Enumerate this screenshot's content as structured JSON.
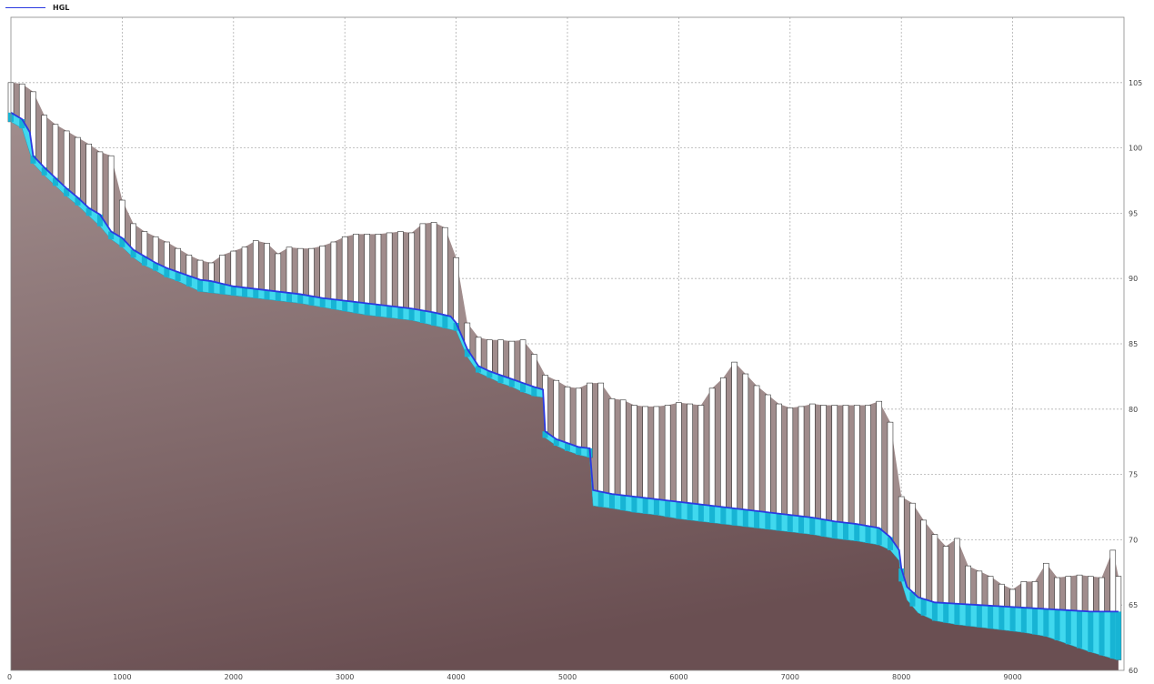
{
  "legend": {
    "hgl_label": "HGL"
  },
  "colors": {
    "hgl": "#2b3ae0",
    "water": "#40d8ee",
    "ground_top": "#a08c8c",
    "ground_bottom": "#6a4f52",
    "pipe_fill": "#ffffff",
    "grid": "#b0b0b0"
  },
  "chart_data": {
    "type": "area",
    "title": "",
    "xlabel": "",
    "ylabel": "",
    "xlim": [
      0,
      10000
    ],
    "ylim": [
      60,
      110
    ],
    "x_ticks": [
      0,
      1000,
      2000,
      3000,
      4000,
      5000,
      6000,
      7000,
      8000,
      9000
    ],
    "y_ticks": [
      60,
      65,
      70,
      75,
      80,
      85,
      90,
      95,
      100,
      105
    ],
    "grid": true,
    "legend_position": "top-left",
    "series": [
      {
        "name": "HGL",
        "points": [
          [
            0,
            102.7
          ],
          [
            100,
            102.2
          ],
          [
            170,
            101.2
          ],
          [
            200,
            99.4
          ],
          [
            300,
            98.5
          ],
          [
            400,
            97.7
          ],
          [
            500,
            96.9
          ],
          [
            600,
            96.2
          ],
          [
            700,
            95.4
          ],
          [
            800,
            94.9
          ],
          [
            900,
            93.6
          ],
          [
            1000,
            93.1
          ],
          [
            1100,
            92.2
          ],
          [
            1200,
            91.7
          ],
          [
            1300,
            91.2
          ],
          [
            1400,
            90.8
          ],
          [
            1500,
            90.5
          ],
          [
            1600,
            90.2
          ],
          [
            1700,
            89.9
          ],
          [
            1800,
            89.8
          ],
          [
            1900,
            89.6
          ],
          [
            2000,
            89.4
          ],
          [
            2200,
            89.2
          ],
          [
            2400,
            89.0
          ],
          [
            2600,
            88.8
          ],
          [
            2800,
            88.5
          ],
          [
            3000,
            88.3
          ],
          [
            3200,
            88.1
          ],
          [
            3400,
            87.9
          ],
          [
            3600,
            87.7
          ],
          [
            3800,
            87.4
          ],
          [
            3950,
            87.1
          ],
          [
            4000,
            86.6
          ],
          [
            4100,
            84.6
          ],
          [
            4200,
            83.3
          ],
          [
            4300,
            82.9
          ],
          [
            4400,
            82.6
          ],
          [
            4500,
            82.3
          ],
          [
            4600,
            82.0
          ],
          [
            4700,
            81.7
          ],
          [
            4780,
            81.5
          ],
          [
            4800,
            78.3
          ],
          [
            4900,
            77.7
          ],
          [
            5000,
            77.4
          ],
          [
            5100,
            77.1
          ],
          [
            5200,
            77.0
          ],
          [
            5230,
            73.8
          ],
          [
            5400,
            73.5
          ],
          [
            5600,
            73.3
          ],
          [
            5800,
            73.1
          ],
          [
            6000,
            72.9
          ],
          [
            6200,
            72.7
          ],
          [
            6400,
            72.5
          ],
          [
            6600,
            72.3
          ],
          [
            6800,
            72.1
          ],
          [
            7000,
            71.9
          ],
          [
            7200,
            71.7
          ],
          [
            7400,
            71.4
          ],
          [
            7600,
            71.2
          ],
          [
            7800,
            70.9
          ],
          [
            7900,
            70.2
          ],
          [
            7980,
            69.2
          ],
          [
            8000,
            67.8
          ],
          [
            8050,
            66.4
          ],
          [
            8150,
            65.6
          ],
          [
            8300,
            65.2
          ],
          [
            8500,
            65.1
          ],
          [
            8700,
            65.0
          ],
          [
            8900,
            64.9
          ],
          [
            9100,
            64.8
          ],
          [
            9300,
            64.7
          ],
          [
            9500,
            64.6
          ],
          [
            9700,
            64.5
          ],
          [
            9950,
            64.5
          ]
        ]
      }
    ],
    "ground_profile": [
      [
        0,
        102.0
      ],
      [
        100,
        101.5
      ],
      [
        200,
        98.8
      ],
      [
        300,
        97.9
      ],
      [
        400,
        97.1
      ],
      [
        500,
        96.3
      ],
      [
        600,
        95.6
      ],
      [
        700,
        94.8
      ],
      [
        800,
        94.0
      ],
      [
        900,
        93.0
      ],
      [
        1000,
        92.4
      ],
      [
        1100,
        91.6
      ],
      [
        1200,
        91.0
      ],
      [
        1300,
        90.6
      ],
      [
        1400,
        90.1
      ],
      [
        1500,
        89.8
      ],
      [
        1600,
        89.4
      ],
      [
        1700,
        89.0
      ],
      [
        1800,
        88.9
      ],
      [
        2000,
        88.7
      ],
      [
        2200,
        88.5
      ],
      [
        2400,
        88.3
      ],
      [
        2600,
        88.1
      ],
      [
        2800,
        87.8
      ],
      [
        3000,
        87.5
      ],
      [
        3200,
        87.2
      ],
      [
        3400,
        87.0
      ],
      [
        3600,
        86.8
      ],
      [
        3800,
        86.4
      ],
      [
        3950,
        86.1
      ],
      [
        4000,
        86.0
      ],
      [
        4100,
        84.0
      ],
      [
        4200,
        82.8
      ],
      [
        4300,
        82.4
      ],
      [
        4400,
        82.0
      ],
      [
        4500,
        81.7
      ],
      [
        4600,
        81.3
      ],
      [
        4700,
        81.0
      ],
      [
        4780,
        80.9
      ],
      [
        4800,
        77.8
      ],
      [
        4900,
        77.2
      ],
      [
        5000,
        76.8
      ],
      [
        5100,
        76.5
      ],
      [
        5200,
        76.3
      ],
      [
        5230,
        72.6
      ],
      [
        5400,
        72.4
      ],
      [
        5600,
        72.1
      ],
      [
        5800,
        71.9
      ],
      [
        6000,
        71.6
      ],
      [
        6200,
        71.4
      ],
      [
        6400,
        71.2
      ],
      [
        6600,
        71.0
      ],
      [
        6800,
        70.8
      ],
      [
        7000,
        70.6
      ],
      [
        7200,
        70.4
      ],
      [
        7400,
        70.1
      ],
      [
        7600,
        69.9
      ],
      [
        7800,
        69.6
      ],
      [
        7900,
        69.2
      ],
      [
        7980,
        68.4
      ],
      [
        8000,
        66.8
      ],
      [
        8050,
        65.4
      ],
      [
        8150,
        64.4
      ],
      [
        8300,
        63.8
      ],
      [
        8500,
        63.5
      ],
      [
        8700,
        63.3
      ],
      [
        8900,
        63.1
      ],
      [
        9100,
        62.9
      ],
      [
        9300,
        62.6
      ],
      [
        9500,
        62.0
      ],
      [
        9700,
        61.4
      ],
      [
        9900,
        60.9
      ],
      [
        9950,
        60.8
      ]
    ],
    "top_profile": [
      [
        0,
        105.0
      ],
      [
        100,
        104.9
      ],
      [
        200,
        104.3
      ],
      [
        300,
        102.5
      ],
      [
        400,
        101.8
      ],
      [
        500,
        101.3
      ],
      [
        600,
        100.8
      ],
      [
        700,
        100.3
      ],
      [
        800,
        99.7
      ],
      [
        900,
        99.4
      ],
      [
        1000,
        96.0
      ],
      [
        1100,
        94.2
      ],
      [
        1200,
        93.6
      ],
      [
        1300,
        93.2
      ],
      [
        1400,
        92.8
      ],
      [
        1500,
        92.3
      ],
      [
        1600,
        91.8
      ],
      [
        1700,
        91.4
      ],
      [
        1800,
        91.2
      ],
      [
        1900,
        91.8
      ],
      [
        2000,
        92.1
      ],
      [
        2100,
        92.4
      ],
      [
        2200,
        92.9
      ],
      [
        2300,
        92.7
      ],
      [
        2400,
        91.9
      ],
      [
        2500,
        92.4
      ],
      [
        2600,
        92.3
      ],
      [
        2700,
        92.3
      ],
      [
        2800,
        92.5
      ],
      [
        2900,
        92.8
      ],
      [
        3000,
        93.2
      ],
      [
        3100,
        93.4
      ],
      [
        3200,
        93.4
      ],
      [
        3300,
        93.4
      ],
      [
        3400,
        93.5
      ],
      [
        3500,
        93.6
      ],
      [
        3600,
        93.5
      ],
      [
        3700,
        94.2
      ],
      [
        3800,
        94.3
      ],
      [
        3900,
        93.9
      ],
      [
        4000,
        91.6
      ],
      [
        4100,
        86.6
      ],
      [
        4200,
        85.5
      ],
      [
        4300,
        85.3
      ],
      [
        4400,
        85.3
      ],
      [
        4500,
        85.2
      ],
      [
        4600,
        85.3
      ],
      [
        4700,
        84.2
      ],
      [
        4800,
        82.6
      ],
      [
        4900,
        82.2
      ],
      [
        5000,
        81.7
      ],
      [
        5100,
        81.6
      ],
      [
        5200,
        82.0
      ],
      [
        5300,
        82.0
      ],
      [
        5400,
        80.8
      ],
      [
        5500,
        80.7
      ],
      [
        5600,
        80.3
      ],
      [
        5700,
        80.2
      ],
      [
        5800,
        80.2
      ],
      [
        5900,
        80.3
      ],
      [
        6000,
        80.5
      ],
      [
        6100,
        80.4
      ],
      [
        6200,
        80.3
      ],
      [
        6300,
        81.6
      ],
      [
        6400,
        82.4
      ],
      [
        6500,
        83.6
      ],
      [
        6600,
        82.7
      ],
      [
        6700,
        81.8
      ],
      [
        6800,
        81.1
      ],
      [
        6900,
        80.4
      ],
      [
        7000,
        80.1
      ],
      [
        7100,
        80.2
      ],
      [
        7200,
        80.4
      ],
      [
        7300,
        80.3
      ],
      [
        7400,
        80.3
      ],
      [
        7500,
        80.3
      ],
      [
        7600,
        80.3
      ],
      [
        7700,
        80.3
      ],
      [
        7800,
        80.6
      ],
      [
        7900,
        79.0
      ],
      [
        8000,
        73.3
      ],
      [
        8100,
        72.8
      ],
      [
        8200,
        71.5
      ],
      [
        8300,
        70.4
      ],
      [
        8400,
        69.5
      ],
      [
        8500,
        70.1
      ],
      [
        8600,
        68.0
      ],
      [
        8700,
        67.6
      ],
      [
        8800,
        67.2
      ],
      [
        8900,
        66.6
      ],
      [
        9000,
        66.2
      ],
      [
        9100,
        66.8
      ],
      [
        9200,
        66.8
      ],
      [
        9300,
        68.2
      ],
      [
        9400,
        67.1
      ],
      [
        9500,
        67.2
      ],
      [
        9600,
        67.3
      ],
      [
        9700,
        67.2
      ],
      [
        9800,
        67.1
      ],
      [
        9900,
        69.2
      ],
      [
        9950,
        67.2
      ]
    ],
    "pipe_stations": [
      0,
      100,
      200,
      300,
      400,
      500,
      600,
      700,
      800,
      900,
      1000,
      1100,
      1200,
      1300,
      1400,
      1500,
      1600,
      1700,
      1800,
      1900,
      2000,
      2100,
      2200,
      2300,
      2400,
      2500,
      2600,
      2700,
      2800,
      2900,
      3000,
      3100,
      3200,
      3300,
      3400,
      3500,
      3600,
      3700,
      3800,
      3900,
      4000,
      4100,
      4200,
      4300,
      4400,
      4500,
      4600,
      4700,
      4800,
      4900,
      5000,
      5100,
      5200,
      5300,
      5400,
      5500,
      5600,
      5700,
      5800,
      5900,
      6000,
      6100,
      6200,
      6300,
      6400,
      6500,
      6600,
      6700,
      6800,
      6900,
      7000,
      7100,
      7200,
      7300,
      7400,
      7500,
      7600,
      7700,
      7800,
      7900,
      8000,
      8100,
      8200,
      8300,
      8400,
      8500,
      8600,
      8700,
      8800,
      8900,
      9000,
      9100,
      9200,
      9300,
      9400,
      9500,
      9600,
      9700,
      9800,
      9900,
      9950
    ]
  }
}
